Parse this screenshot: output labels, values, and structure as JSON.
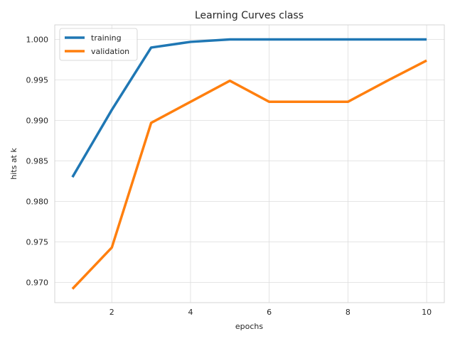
{
  "chart_data": {
    "type": "line",
    "title": "Learning Curves class",
    "xlabel": "epochs",
    "ylabel": "hits at k",
    "x": [
      1,
      2,
      3,
      4,
      5,
      6,
      7,
      8,
      9,
      10
    ],
    "xticks": [
      2,
      4,
      6,
      8,
      10
    ],
    "yticks": [
      0.97,
      0.975,
      0.98,
      0.985,
      0.99,
      0.995,
      1.0
    ],
    "xlim": [
      0.55,
      10.45
    ],
    "ylim": [
      0.9675,
      1.0018
    ],
    "grid": true,
    "legend_position": "top-left",
    "series": [
      {
        "name": "training",
        "color": "#1f77b4",
        "values": [
          0.983,
          0.9913,
          0.999,
          0.9997,
          1.0,
          1.0,
          1.0,
          1.0,
          1.0,
          1.0
        ]
      },
      {
        "name": "validation",
        "color": "#ff7f0e",
        "values": [
          0.9692,
          0.9743,
          0.9897,
          0.9923,
          0.9949,
          0.9923,
          0.9923,
          0.9923,
          0.9949,
          0.9974
        ]
      }
    ]
  }
}
